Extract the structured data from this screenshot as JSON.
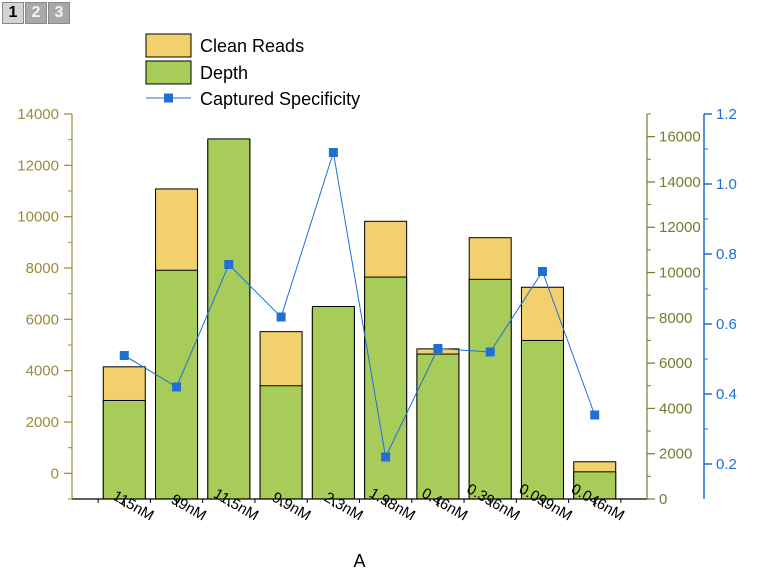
{
  "page_tabs": [
    "1",
    "2",
    "3"
  ],
  "active_tab": "1",
  "colors": {
    "clean_reads": "#F2D06B",
    "depth": "#A8CC5A",
    "specificity": "#1F6FD6",
    "left_axis": "#9B8A3A",
    "right_axis_inner": "#6F7F2E",
    "right_axis_outer": "#1F6FD6"
  },
  "chart_data": {
    "type": "bar",
    "xlabel": "A",
    "categories": [
      "115nM",
      "99nM",
      "11.5nM",
      "9.9nM",
      "2.3nM",
      "1.98nM",
      "0.46nM",
      "0.396nM",
      "0.099nM",
      "0.046nM"
    ],
    "series": [
      {
        "name": "Clean Reads",
        "type": "bar",
        "axis": "left",
        "values": [
          4150,
          11080,
          12980,
          5520,
          6320,
          9820,
          4850,
          9180,
          7250,
          450
        ]
      },
      {
        "name": "Depth",
        "type": "bar",
        "axis": "right_inner",
        "values": [
          4350,
          10100,
          15900,
          5000,
          8500,
          9800,
          6400,
          9700,
          7000,
          1200
        ]
      },
      {
        "name": "Captured Specificity",
        "type": "line",
        "axis": "right_outer",
        "values": [
          0.51,
          0.42,
          0.77,
          0.62,
          1.09,
          0.22,
          0.53,
          0.52,
          0.75,
          0.34
        ]
      }
    ],
    "left_axis": {
      "ylim": [
        -1000,
        14000
      ],
      "ticks": [
        0,
        2000,
        4000,
        6000,
        8000,
        10000,
        12000,
        14000
      ]
    },
    "right_inner_axis": {
      "ylim": [
        0,
        17000
      ],
      "ticks": [
        0,
        2000,
        4000,
        6000,
        8000,
        10000,
        12000,
        14000,
        16000
      ]
    },
    "right_outer_axis": {
      "ylim": [
        0.1,
        1.2
      ],
      "ticks": [
        0.2,
        0.4,
        0.6,
        0.8,
        1.0,
        1.2
      ]
    },
    "legend": {
      "placement": "top-center",
      "entries": [
        "Clean Reads",
        "Depth",
        "Captured Specificity"
      ]
    }
  }
}
